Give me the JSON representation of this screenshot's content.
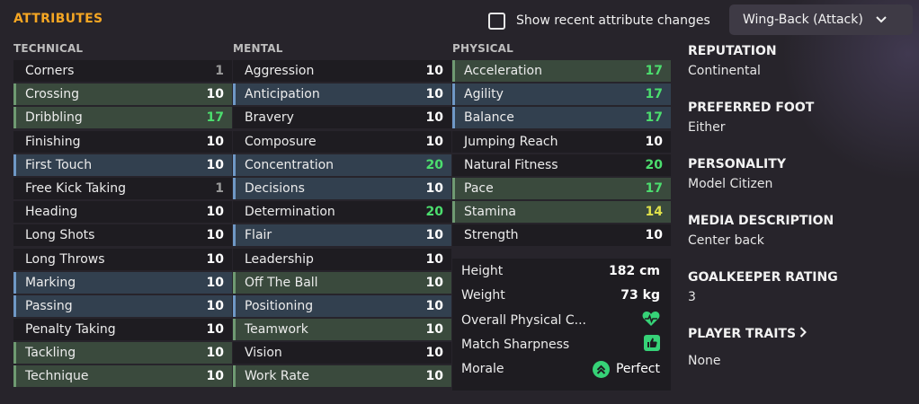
{
  "header": {
    "title": "ATTRIBUTES",
    "recent_changes_label": "Show recent attribute changes",
    "role_dropdown": "Wing-Back (Attack)"
  },
  "columns": {
    "technical": {
      "label": "TECHNICAL",
      "rows": [
        {
          "name": "Corners",
          "value": "1",
          "hl": "",
          "tone": "dim"
        },
        {
          "name": "Crossing",
          "value": "10",
          "hl": "green",
          "tone": "normal"
        },
        {
          "name": "Dribbling",
          "value": "17",
          "hl": "green",
          "tone": "green"
        },
        {
          "name": "Finishing",
          "value": "10",
          "hl": "",
          "tone": "normal"
        },
        {
          "name": "First Touch",
          "value": "10",
          "hl": "blue",
          "tone": "normal"
        },
        {
          "name": "Free Kick Taking",
          "value": "1",
          "hl": "",
          "tone": "dim"
        },
        {
          "name": "Heading",
          "value": "10",
          "hl": "",
          "tone": "normal"
        },
        {
          "name": "Long Shots",
          "value": "10",
          "hl": "",
          "tone": "normal"
        },
        {
          "name": "Long Throws",
          "value": "10",
          "hl": "",
          "tone": "normal"
        },
        {
          "name": "Marking",
          "value": "10",
          "hl": "blue",
          "tone": "normal"
        },
        {
          "name": "Passing",
          "value": "10",
          "hl": "blue",
          "tone": "normal"
        },
        {
          "name": "Penalty Taking",
          "value": "10",
          "hl": "",
          "tone": "normal"
        },
        {
          "name": "Tackling",
          "value": "10",
          "hl": "green",
          "tone": "normal"
        },
        {
          "name": "Technique",
          "value": "10",
          "hl": "green",
          "tone": "normal"
        }
      ]
    },
    "mental": {
      "label": "MENTAL",
      "rows": [
        {
          "name": "Aggression",
          "value": "10",
          "hl": "",
          "tone": "normal"
        },
        {
          "name": "Anticipation",
          "value": "10",
          "hl": "blue",
          "tone": "normal"
        },
        {
          "name": "Bravery",
          "value": "10",
          "hl": "",
          "tone": "normal"
        },
        {
          "name": "Composure",
          "value": "10",
          "hl": "",
          "tone": "normal"
        },
        {
          "name": "Concentration",
          "value": "20",
          "hl": "blue",
          "tone": "green"
        },
        {
          "name": "Decisions",
          "value": "10",
          "hl": "blue",
          "tone": "normal"
        },
        {
          "name": "Determination",
          "value": "20",
          "hl": "",
          "tone": "green"
        },
        {
          "name": "Flair",
          "value": "10",
          "hl": "blue",
          "tone": "normal"
        },
        {
          "name": "Leadership",
          "value": "10",
          "hl": "",
          "tone": "normal"
        },
        {
          "name": "Off The Ball",
          "value": "10",
          "hl": "green",
          "tone": "normal"
        },
        {
          "name": "Positioning",
          "value": "10",
          "hl": "blue",
          "tone": "normal"
        },
        {
          "name": "Teamwork",
          "value": "10",
          "hl": "green",
          "tone": "normal"
        },
        {
          "name": "Vision",
          "value": "10",
          "hl": "",
          "tone": "normal"
        },
        {
          "name": "Work Rate",
          "value": "10",
          "hl": "green",
          "tone": "normal"
        }
      ]
    },
    "physical": {
      "label": "PHYSICAL",
      "rows": [
        {
          "name": "Acceleration",
          "value": "17",
          "hl": "green",
          "tone": "green"
        },
        {
          "name": "Agility",
          "value": "17",
          "hl": "blue",
          "tone": "green"
        },
        {
          "name": "Balance",
          "value": "17",
          "hl": "blue",
          "tone": "green"
        },
        {
          "name": "Jumping Reach",
          "value": "10",
          "hl": "",
          "tone": "normal"
        },
        {
          "name": "Natural Fitness",
          "value": "20",
          "hl": "",
          "tone": "green"
        },
        {
          "name": "Pace",
          "value": "17",
          "hl": "green",
          "tone": "green"
        },
        {
          "name": "Stamina",
          "value": "14",
          "hl": "green",
          "tone": "yellow"
        },
        {
          "name": "Strength",
          "value": "10",
          "hl": "",
          "tone": "normal"
        }
      ]
    }
  },
  "physical_info": {
    "height_label": "Height",
    "height_value": "182 cm",
    "weight_label": "Weight",
    "weight_value": "73 kg",
    "condition_label": "Overall Physical C...",
    "condition_icon": "heart-pulse-icon",
    "sharpness_label": "Match Sharpness",
    "sharpness_icon": "thumbs-up-icon",
    "morale_label": "Morale",
    "morale_value": "Perfect",
    "morale_icon": "double-chevron-up-icon"
  },
  "profile": {
    "reputation_label": "REPUTATION",
    "reputation_value": "Continental",
    "foot_label": "PREFERRED FOOT",
    "foot_value": "Either",
    "personality_label": "PERSONALITY",
    "personality_value": "Model Citizen",
    "media_label": "MEDIA DESCRIPTION",
    "media_value": "Center back",
    "gk_label": "GOALKEEPER RATING",
    "gk_value": "3",
    "traits_label": "PLAYER TRAITS",
    "traits_value": "None"
  },
  "colors": {
    "accent": "#f5a623",
    "good": "#4cde6e",
    "ok": "#dfe04a",
    "status": "#36d277"
  }
}
